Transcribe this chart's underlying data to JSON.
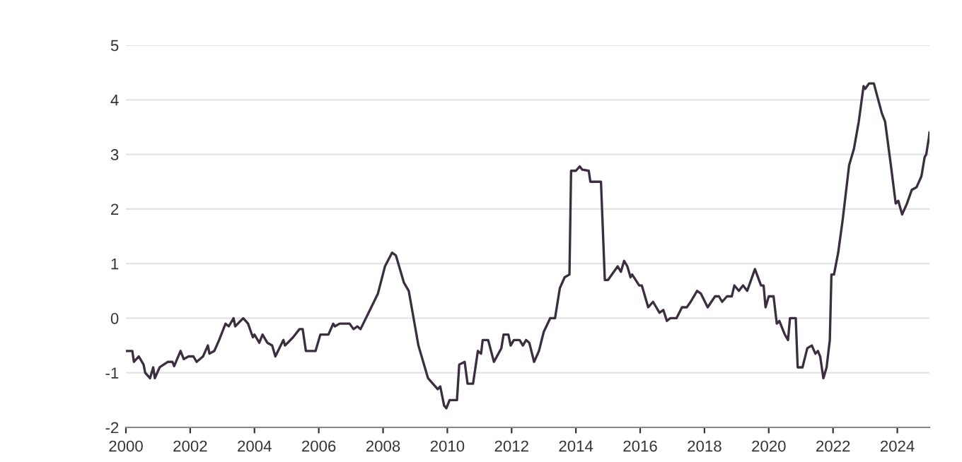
{
  "chart_data": {
    "type": "line",
    "x": [
      2000.0,
      2000.2,
      2000.25,
      2000.4,
      2000.55,
      2000.6,
      2000.75,
      2000.85,
      2000.9,
      2001.05,
      2001.3,
      2001.45,
      2001.5,
      2001.7,
      2001.8,
      2001.95,
      2002.1,
      2002.2,
      2002.4,
      2002.55,
      2002.6,
      2002.75,
      2002.9,
      2003.1,
      2003.2,
      2003.35,
      2003.4,
      2003.65,
      2003.8,
      2003.95,
      2004.0,
      2004.15,
      2004.25,
      2004.4,
      2004.55,
      2004.65,
      2004.9,
      2004.95,
      2005.2,
      2005.4,
      2005.5,
      2005.6,
      2005.9,
      2006.05,
      2006.3,
      2006.45,
      2006.5,
      2006.65,
      2006.96,
      2007.08,
      2007.2,
      2007.3,
      2007.55,
      2007.84,
      2008.06,
      2008.28,
      2008.4,
      2008.65,
      2008.8,
      2009.1,
      2009.4,
      2009.55,
      2009.7,
      2009.78,
      2009.9,
      2009.97,
      2010.07,
      2010.3,
      2010.37,
      2010.54,
      2010.63,
      2010.8,
      2010.95,
      2011.05,
      2011.1,
      2011.27,
      2011.45,
      2011.68,
      2011.75,
      2011.9,
      2011.97,
      2012.07,
      2012.25,
      2012.35,
      2012.45,
      2012.55,
      2012.7,
      2012.85,
      2013.0,
      2013.2,
      2013.35,
      2013.5,
      2013.65,
      2013.8,
      2013.85,
      2014.0,
      2014.12,
      2014.2,
      2014.4,
      2014.45,
      2014.78,
      2014.9,
      2015.0,
      2015.3,
      2015.4,
      2015.5,
      2015.6,
      2015.7,
      2015.75,
      2015.97,
      2016.05,
      2016.25,
      2016.4,
      2016.6,
      2016.72,
      2016.83,
      2016.94,
      2017.13,
      2017.3,
      2017.45,
      2017.57,
      2017.77,
      2017.89,
      2018.1,
      2018.33,
      2018.45,
      2018.55,
      2018.7,
      2018.85,
      2018.93,
      2019.07,
      2019.2,
      2019.33,
      2019.57,
      2019.76,
      2019.84,
      2019.9,
      2020.0,
      2020.15,
      2020.25,
      2020.33,
      2020.5,
      2020.6,
      2020.66,
      2020.84,
      2020.9,
      2021.05,
      2021.2,
      2021.34,
      2021.45,
      2021.53,
      2021.6,
      2021.7,
      2021.8,
      2021.9,
      2021.95,
      2022.03,
      2022.16,
      2022.3,
      2022.5,
      2022.65,
      2022.8,
      2022.95,
      2023.0,
      2023.12,
      2023.27,
      2023.52,
      2023.62,
      2023.8,
      2023.95,
      2024.03,
      2024.15,
      2024.3,
      2024.45,
      2024.6,
      2024.75,
      2024.85,
      2024.9,
      2024.98,
      2025.0
    ],
    "series": [
      {
        "color": "#3b2e3f",
        "values": [
          -0.6,
          -0.6,
          -0.8,
          -0.7,
          -0.85,
          -1.0,
          -1.1,
          -0.9,
          -1.1,
          -0.9,
          -0.8,
          -0.8,
          -0.88,
          -0.6,
          -0.75,
          -0.7,
          -0.7,
          -0.8,
          -0.7,
          -0.5,
          -0.65,
          -0.6,
          -0.4,
          -0.1,
          -0.15,
          0.0,
          -0.15,
          0.0,
          -0.1,
          -0.35,
          -0.3,
          -0.45,
          -0.3,
          -0.45,
          -0.5,
          -0.7,
          -0.4,
          -0.5,
          -0.35,
          -0.2,
          -0.2,
          -0.6,
          -0.6,
          -0.3,
          -0.3,
          -0.1,
          -0.15,
          -0.1,
          -0.1,
          -0.2,
          -0.15,
          -0.2,
          0.1,
          0.45,
          0.95,
          1.2,
          1.15,
          0.65,
          0.5,
          -0.5,
          -1.1,
          -1.2,
          -1.3,
          -1.25,
          -1.6,
          -1.65,
          -1.5,
          -1.5,
          -0.85,
          -0.8,
          -1.2,
          -1.2,
          -0.6,
          -0.65,
          -0.4,
          -0.4,
          -0.8,
          -0.55,
          -0.3,
          -0.3,
          -0.5,
          -0.4,
          -0.4,
          -0.5,
          -0.4,
          -0.45,
          -0.8,
          -0.6,
          -0.25,
          0.0,
          0.0,
          0.55,
          0.75,
          0.8,
          2.7,
          2.7,
          2.78,
          2.72,
          2.7,
          2.5,
          2.5,
          0.7,
          0.7,
          0.95,
          0.85,
          1.05,
          0.95,
          0.75,
          0.8,
          0.6,
          0.6,
          0.2,
          0.3,
          0.1,
          0.15,
          -0.05,
          0.0,
          0.0,
          0.2,
          0.2,
          0.3,
          0.5,
          0.45,
          0.2,
          0.4,
          0.4,
          0.3,
          0.4,
          0.4,
          0.6,
          0.5,
          0.6,
          0.5,
          0.9,
          0.6,
          0.6,
          0.2,
          0.4,
          0.4,
          -0.1,
          -0.05,
          -0.3,
          -0.4,
          0.0,
          0.0,
          -0.9,
          -0.9,
          -0.55,
          -0.5,
          -0.65,
          -0.6,
          -0.7,
          -1.1,
          -0.9,
          -0.4,
          0.8,
          0.8,
          1.2,
          1.8,
          2.8,
          3.1,
          3.6,
          4.25,
          4.2,
          4.3,
          4.3,
          3.75,
          3.6,
          2.8,
          2.1,
          2.15,
          1.9,
          2.1,
          2.35,
          2.4,
          2.6,
          2.95,
          3.0,
          3.3,
          3.4
        ]
      }
    ],
    "xlim": [
      2000,
      2025
    ],
    "ylim": [
      -2,
      5
    ],
    "xticks": [
      2000,
      2002,
      2004,
      2006,
      2008,
      2010,
      2012,
      2014,
      2016,
      2018,
      2020,
      2022,
      2024
    ],
    "yticks": [
      -2,
      -1,
      0,
      1,
      2,
      3,
      4,
      5
    ],
    "grid": "y",
    "marker": "none",
    "line_style": "solid",
    "legend": false
  }
}
